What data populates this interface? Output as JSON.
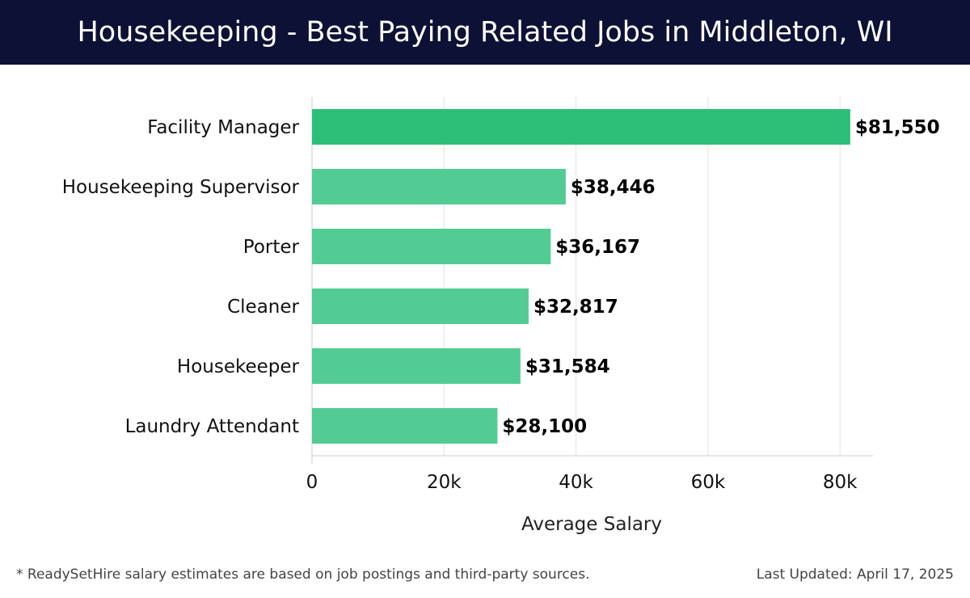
{
  "header": {
    "title": "Housekeeping - Best Paying Related Jobs in Middleton, WI"
  },
  "footer": {
    "note": "* ReadySetHire salary estimates are based on job postings and third-party sources.",
    "updated": "Last Updated: April 17, 2025"
  },
  "chart_data": {
    "type": "bar",
    "orientation": "horizontal",
    "categories": [
      "Facility Manager",
      "Housekeeping Supervisor",
      "Porter",
      "Cleaner",
      "Housekeeper",
      "Laundry Attendant"
    ],
    "values": [
      81550,
      38446,
      36167,
      32817,
      31584,
      28100
    ],
    "value_labels": [
      "$81,550",
      "$38,446",
      "$36,167",
      "$32,817",
      "$31,584",
      "$28,100"
    ],
    "xlabel": "Average Salary",
    "ylabel": "",
    "xlim": [
      0,
      85000
    ],
    "x_ticks": [
      0,
      20000,
      40000,
      60000,
      80000
    ],
    "x_tick_labels": [
      "0",
      "20k",
      "40k",
      "60k",
      "80k"
    ],
    "grid": true,
    "colors": {
      "highlight": "#2dbe78",
      "bar": "#52cc93",
      "grid": "#e3e3e3",
      "axis": "#cccccc"
    }
  }
}
